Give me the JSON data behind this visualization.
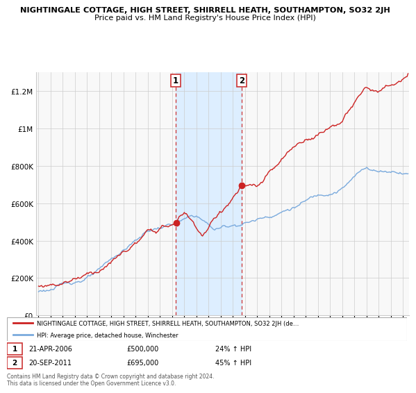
{
  "title": "NIGHTINGALE COTTAGE, HIGH STREET, SHIRRELL HEATH, SOUTHAMPTON, SO32 2JH",
  "subtitle": "Price paid vs. HM Land Registry's House Price Index (HPI)",
  "hpi_color": "#7aaadd",
  "price_color": "#cc2222",
  "highlight_color": "#ddeeff",
  "point1_year": 2006.3,
  "point1_price": 500000,
  "point1_label": "1",
  "point1_date": "21-APR-2006",
  "point1_hpi": "24% ↑ HPI",
  "point2_year": 2011.72,
  "point2_price": 695000,
  "point2_label": "2",
  "point2_date": "20-SEP-2011",
  "point2_hpi": "45% ↑ HPI",
  "legend_label_price": "NIGHTINGALE COTTAGE, HIGH STREET, SHIRRELL HEATH, SOUTHAMPTON, SO32 2JH (de…",
  "legend_label_hpi": "HPI: Average price, detached house, Winchester",
  "footer": "Contains HM Land Registry data © Crown copyright and database right 2024.\nThis data is licensed under the Open Government Licence v3.0.",
  "ylim": [
    0,
    1300000
  ],
  "yticks": [
    0,
    200000,
    400000,
    600000,
    800000,
    1000000,
    1200000
  ],
  "ytick_labels": [
    "£0",
    "£200K",
    "£400K",
    "£600K",
    "£800K",
    "£1M",
    "£1.2M"
  ],
  "xstart": 1994.8,
  "xend": 2025.5
}
